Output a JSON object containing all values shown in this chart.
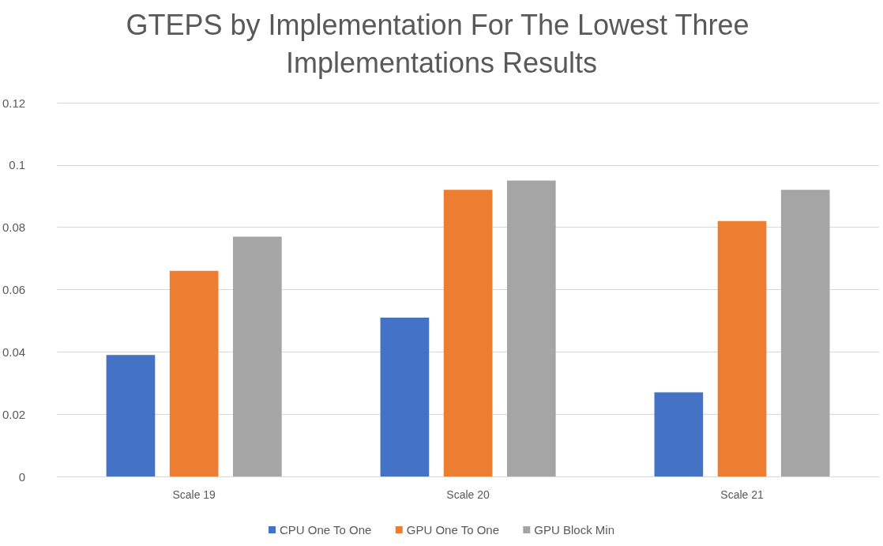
{
  "chart_data": {
    "type": "bar",
    "title": "GTEPS by Implementation For The Lowest Three Implementations Results",
    "categories": [
      "Scale 19",
      "Scale 20",
      "Scale 21"
    ],
    "series": [
      {
        "name": "CPU One To One",
        "color": "#4472c4",
        "values": [
          0.039,
          0.051,
          0.027
        ]
      },
      {
        "name": "GPU One To One",
        "color": "#ed7d31",
        "values": [
          0.066,
          0.092,
          0.082
        ]
      },
      {
        "name": "GPU Block Min",
        "color": "#a5a5a5",
        "values": [
          0.077,
          0.095,
          0.092
        ]
      }
    ],
    "ylim": [
      0,
      0.12
    ],
    "yticks": [
      0,
      0.02,
      0.04,
      0.06,
      0.08,
      0.1,
      0.12
    ],
    "grid": "y",
    "legend": "bottom"
  }
}
